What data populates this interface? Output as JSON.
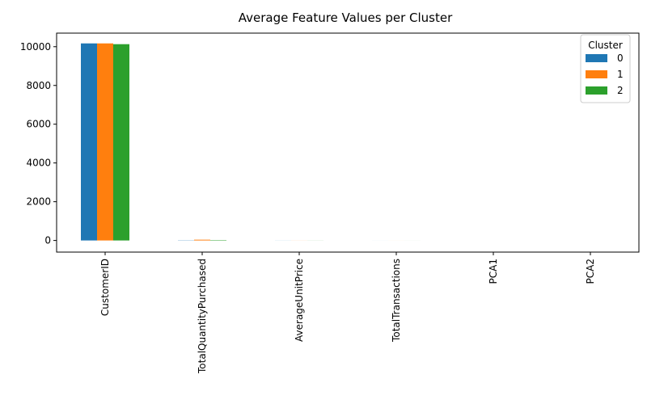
{
  "chart_data": {
    "type": "bar",
    "title": "Average Feature Values per Cluster",
    "xlabel": "",
    "ylabel": "",
    "categories": [
      "CustomerID",
      "TotalQuantityPurchased",
      "AverageUnitPrice",
      "TotalTransactions",
      "PCA1",
      "PCA2"
    ],
    "series": [
      {
        "name": "0",
        "color": "#1f77b4",
        "values": [
          10170,
          10,
          3,
          1,
          0,
          0
        ]
      },
      {
        "name": "1",
        "color": "#ff7f0e",
        "values": [
          10170,
          40,
          3,
          1,
          0,
          0
        ]
      },
      {
        "name": "2",
        "color": "#2ca02c",
        "values": [
          10130,
          20,
          3,
          1,
          0,
          0
        ]
      }
    ],
    "ylim": [
      -600,
      10700
    ],
    "yticks": [
      0,
      2000,
      4000,
      6000,
      8000,
      10000
    ],
    "legend": {
      "title": "Cluster",
      "position": "top-right"
    },
    "grid": false
  }
}
